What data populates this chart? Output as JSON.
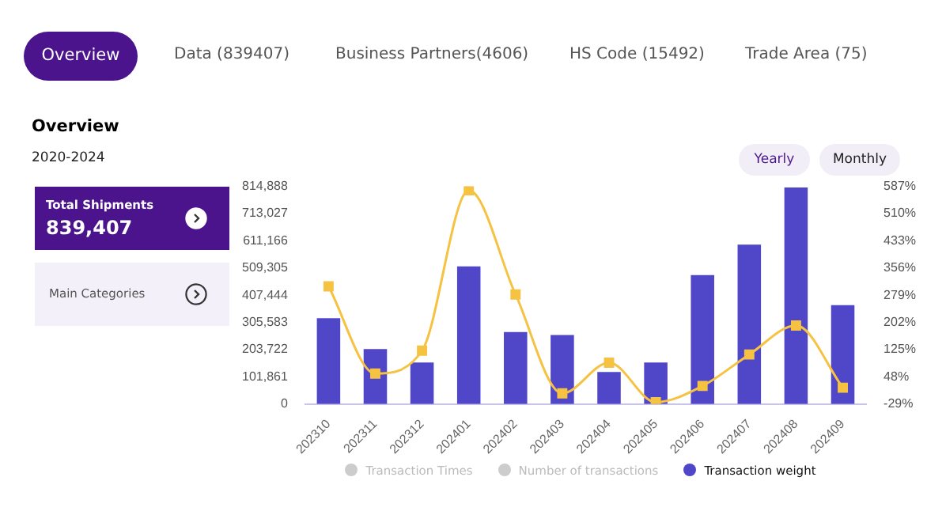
{
  "chart_data": {
    "type": "bar",
    "title": "Overview",
    "subtitle": "2020-2024",
    "annotations": [
      "Overview",
      "Data (839407)",
      "Business Partners(4606)",
      "HS Code (15492)",
      "Trade Area (75)",
      "Yearly",
      "Monthly",
      "Total Shipments",
      "839,407",
      "Main Categories"
    ],
    "categories": [
      "202310",
      "202311",
      "202312",
      "202401",
      "202402",
      "202403",
      "202404",
      "202405",
      "202406",
      "202407",
      "202408",
      "202409"
    ],
    "series": [
      {
        "name": "Transaction Times",
        "color": "#cccccc",
        "values": [
          null,
          null,
          null,
          null,
          null,
          null,
          null,
          null,
          null,
          null,
          null,
          null
        ]
      },
      {
        "name": "Number of transactions",
        "color": "#cccccc",
        "values": [
          null,
          null,
          null,
          null,
          null,
          null,
          null,
          null,
          null,
          null,
          null,
          null
        ]
      },
      {
        "name": "Transaction weight",
        "color": "#5046c8",
        "values": [
          321000,
          206000,
          155000,
          515000,
          269000,
          258000,
          120000,
          155000,
          483000,
          597000,
          811000,
          370000
        ]
      },
      {
        "type": "line",
        "axis": "y2",
        "color": "#f5c242",
        "values": [
          304,
          57,
          122,
          576,
          281,
          1,
          88,
          -24,
          22,
          111,
          193,
          17
        ]
      }
    ],
    "ylim": [
      0,
      814888
    ],
    "yticks": [
      0,
      {
        "value": 101861,
        "label": "101,861"
      },
      {
        "value": 203722,
        "label": "203,722"
      },
      {
        "value": 305583,
        "label": "305,583"
      },
      {
        "value": 407444,
        "label": "407,444"
      },
      {
        "value": 509305,
        "label": "509,305"
      },
      {
        "value": 611166,
        "label": "611,166"
      },
      {
        "value": 713027,
        "label": "713,027"
      },
      {
        "value": 814888,
        "label": "814,888"
      }
    ],
    "y2lim": [
      -29,
      587
    ],
    "y2ticks": [
      {
        "value": -29,
        "label": "-29%"
      },
      {
        "value": 48,
        "label": "48%"
      },
      {
        "value": 125,
        "label": "125%"
      },
      {
        "value": 202,
        "label": "202%"
      },
      {
        "value": 279,
        "label": "279%"
      },
      {
        "value": 356,
        "label": "356%"
      },
      {
        "value": 433,
        "label": "433%"
      },
      {
        "value": 510,
        "label": "510%"
      },
      {
        "value": 587,
        "label": "587%"
      }
    ],
    "legend": "bottom",
    "grid": false,
    "marker": "square"
  }
}
